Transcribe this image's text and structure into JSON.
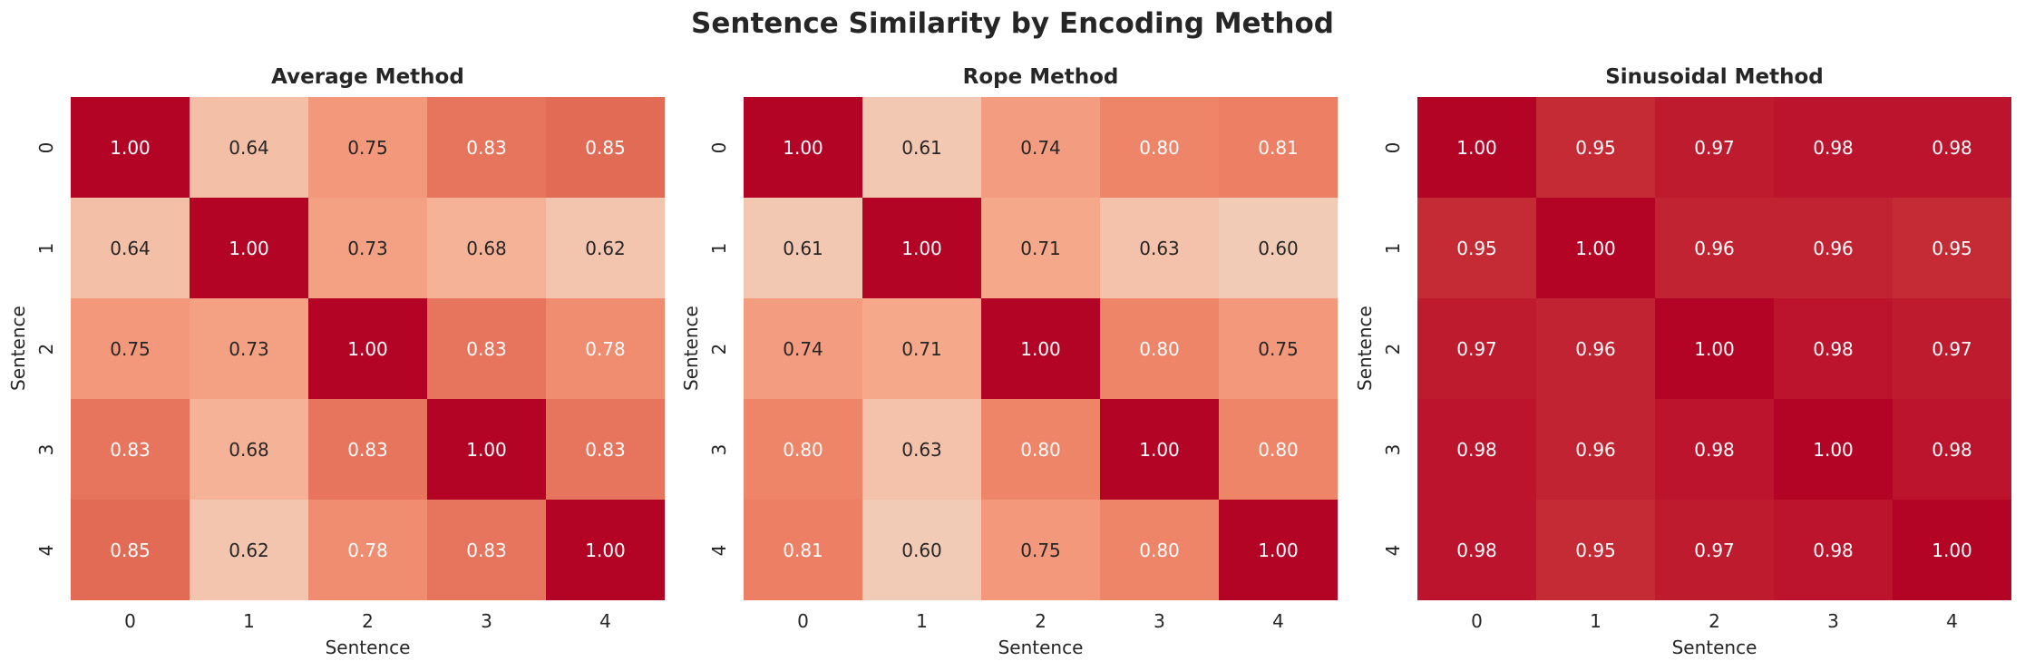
{
  "title": "Sentence Similarity by Encoding Method",
  "chart_data": [
    {
      "type": "heatmap",
      "title": "Average Method",
      "xlabel": "Sentence",
      "ylabel": "Sentence",
      "x_ticks": [
        "0",
        "1",
        "2",
        "3",
        "4"
      ],
      "y_ticks": [
        "0",
        "1",
        "2",
        "3",
        "4"
      ],
      "colormap": "coolwarm",
      "vmin": 0,
      "vmax": 1,
      "values": [
        [
          1.0,
          0.64,
          0.75,
          0.83,
          0.85
        ],
        [
          0.64,
          1.0,
          0.73,
          0.68,
          0.62
        ],
        [
          0.75,
          0.73,
          1.0,
          0.83,
          0.78
        ],
        [
          0.83,
          0.68,
          0.83,
          1.0,
          0.83
        ],
        [
          0.85,
          0.62,
          0.78,
          0.83,
          1.0
        ]
      ]
    },
    {
      "type": "heatmap",
      "title": "Rope Method",
      "xlabel": "Sentence",
      "ylabel": "Sentence",
      "x_ticks": [
        "0",
        "1",
        "2",
        "3",
        "4"
      ],
      "y_ticks": [
        "0",
        "1",
        "2",
        "3",
        "4"
      ],
      "colormap": "coolwarm",
      "vmin": 0,
      "vmax": 1,
      "values": [
        [
          1.0,
          0.61,
          0.74,
          0.8,
          0.81
        ],
        [
          0.61,
          1.0,
          0.71,
          0.63,
          0.6
        ],
        [
          0.74,
          0.71,
          1.0,
          0.8,
          0.75
        ],
        [
          0.8,
          0.63,
          0.8,
          1.0,
          0.8
        ],
        [
          0.81,
          0.6,
          0.75,
          0.8,
          1.0
        ]
      ]
    },
    {
      "type": "heatmap",
      "title": "Sinusoidal Method",
      "xlabel": "Sentence",
      "ylabel": "Sentence",
      "x_ticks": [
        "0",
        "1",
        "2",
        "3",
        "4"
      ],
      "y_ticks": [
        "0",
        "1",
        "2",
        "3",
        "4"
      ],
      "colormap": "coolwarm",
      "vmin": 0,
      "vmax": 1,
      "values": [
        [
          1.0,
          0.95,
          0.97,
          0.98,
          0.98
        ],
        [
          0.95,
          1.0,
          0.96,
          0.96,
          0.95
        ],
        [
          0.97,
          0.96,
          1.0,
          0.98,
          0.97
        ],
        [
          0.98,
          0.96,
          0.98,
          1.0,
          0.98
        ],
        [
          0.98,
          0.95,
          0.97,
          0.98,
          1.0
        ]
      ]
    }
  ]
}
